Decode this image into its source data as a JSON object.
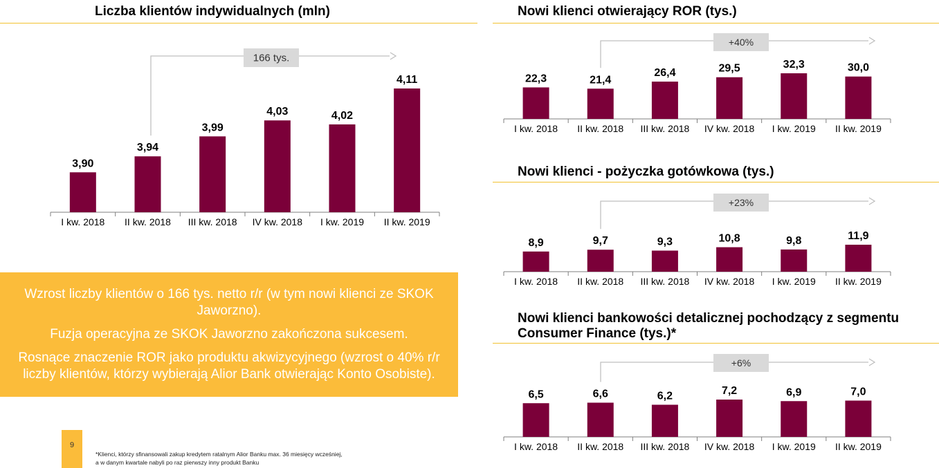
{
  "colors": {
    "bar": "#7B0039",
    "accent": "#FBBC3A",
    "rule": "#F2C230",
    "badge": "#D9D9D9",
    "arrow": "#BFBFBF"
  },
  "charts": {
    "clients": {
      "title": "Liczba klientów indywidualnych (mln)",
      "badge": "166 tys."
    },
    "ror": {
      "title": "Nowi klienci otwierający ROR (tys.)",
      "badge": "+40%"
    },
    "loan": {
      "title": "Nowi klienci - pożyczka gotówkowa (tys.)",
      "badge": "+23%"
    },
    "cf": {
      "title_line1": "Nowi klienci bankowości detalicznej pochodzący z segmentu",
      "title_line2": "Consumer Finance (tys.)*",
      "badge": "+6%"
    }
  },
  "chart_data": [
    {
      "id": "clients",
      "type": "bar",
      "title": "Liczba klientów indywidualnych (mln)",
      "categories": [
        "I kw. 2018",
        "II kw. 2018",
        "III kw. 2018",
        "IV kw. 2018",
        "I kw. 2019",
        "II kw. 2019"
      ],
      "values": [
        3.9,
        3.94,
        3.99,
        4.03,
        4.02,
        4.11
      ],
      "labels": [
        "3,90",
        "3,94",
        "3,99",
        "4,03",
        "4,02",
        "4,11"
      ],
      "annotation": {
        "text": "166 tys.",
        "from": "II kw. 2018",
        "to": "II kw. 2019"
      }
    },
    {
      "id": "ror",
      "type": "bar",
      "title": "Nowi klienci otwierający ROR (tys.)",
      "categories": [
        "I kw. 2018",
        "II kw. 2018",
        "III kw. 2018",
        "IV kw. 2018",
        "I kw. 2019",
        "II kw. 2019"
      ],
      "values": [
        22.3,
        21.4,
        26.4,
        29.5,
        32.3,
        30.0
      ],
      "labels": [
        "22,3",
        "21,4",
        "26,4",
        "29,5",
        "32,3",
        "30,0"
      ],
      "annotation": {
        "text": "+40%",
        "from": "II kw. 2018",
        "to": "II kw. 2019"
      }
    },
    {
      "id": "loan",
      "type": "bar",
      "title": "Nowi klienci - pożyczka gotówkowa (tys.)",
      "categories": [
        "I kw. 2018",
        "II kw. 2018",
        "III kw. 2018",
        "IV kw. 2018",
        "I kw. 2019",
        "II kw. 2019"
      ],
      "values": [
        8.9,
        9.7,
        9.3,
        10.8,
        9.8,
        11.9
      ],
      "labels": [
        "8,9",
        "9,7",
        "9,3",
        "10,8",
        "9,8",
        "11,9"
      ],
      "annotation": {
        "text": "+23%",
        "from": "II kw. 2018",
        "to": "II kw. 2019"
      }
    },
    {
      "id": "cf",
      "type": "bar",
      "title": "Nowi klienci bankowości detalicznej pochodzący z segmentu Consumer Finance (tys.)*",
      "categories": [
        "I kw. 2018",
        "II kw. 2018",
        "III kw. 2018",
        "IV kw. 2018",
        "I kw. 2019",
        "II kw. 2019"
      ],
      "values": [
        6.5,
        6.6,
        6.2,
        7.2,
        6.9,
        7.0
      ],
      "labels": [
        "6,5",
        "6,6",
        "6,2",
        "7,2",
        "6,9",
        "7,0"
      ],
      "annotation": {
        "text": "+6%",
        "from": "II kw. 2018",
        "to": "II kw. 2019"
      }
    }
  ],
  "callout": {
    "line1": "Wzrost liczby klientów o 166 tys. netto r/r (w tym nowi klienci ze SKOK Jaworzno).",
    "line2": "Fuzja operacyjna ze SKOK Jaworzno zakończona sukcesem.",
    "line3": "Rosnące znaczenie ROR jako produktu akwizycyjnego (wzrost o 40% r/r liczby klientów, którzy wybierają Alior Bank otwierając Konto Osobiste)."
  },
  "page_number": "9",
  "footnote": {
    "line1": "*Klienci, którzy sfinansowali zakup kredytem ratalnym Alior Banku max. 36 miesięcy wcześniej,",
    "line2": "a w danym kwartale nabyli po raz pierwszy inny produkt Banku"
  }
}
